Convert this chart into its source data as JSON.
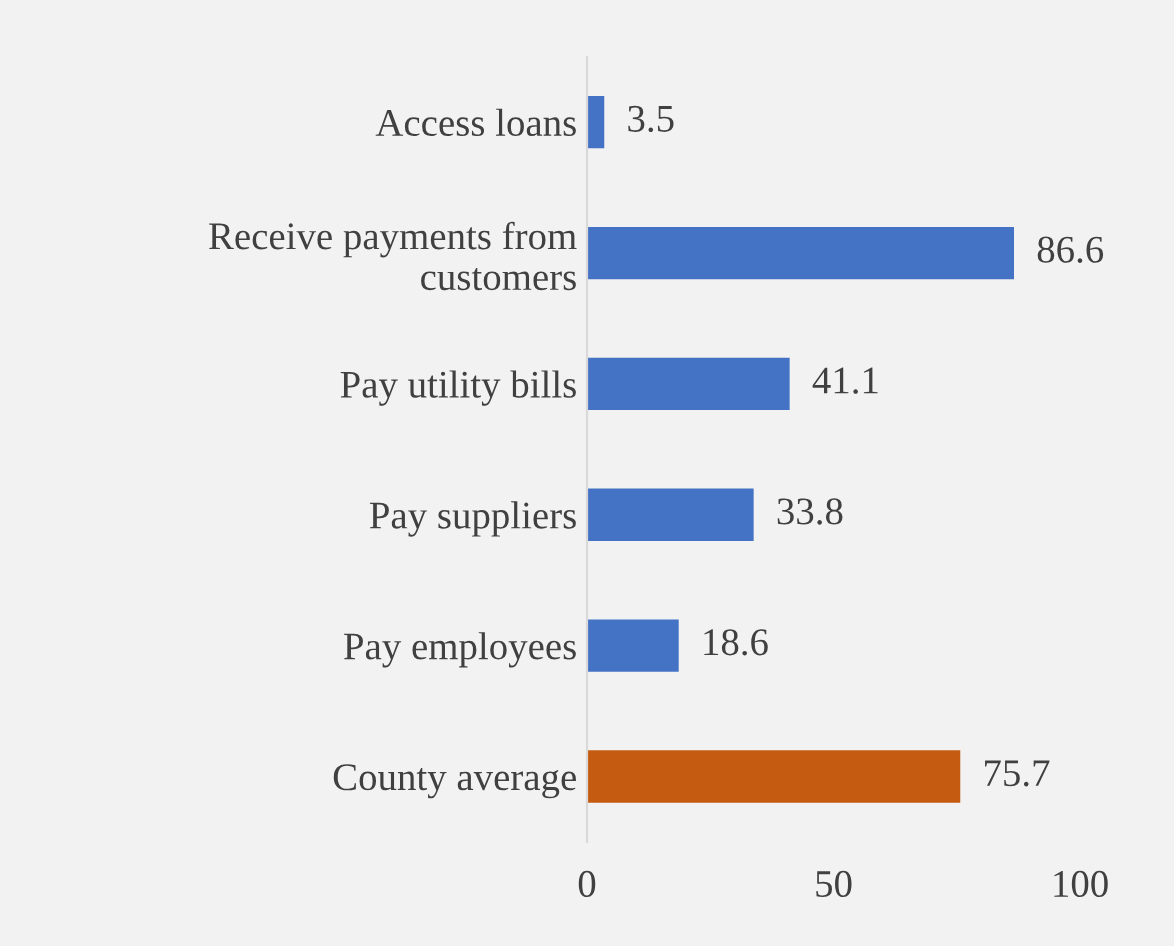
{
  "chart_data": {
    "type": "bar",
    "orientation": "horizontal",
    "categories": [
      "Access loans",
      "Receive payments from customers",
      "Pay utility bills",
      "Pay suppliers",
      "Pay employees",
      "County average"
    ],
    "values": [
      3.5,
      86.6,
      41.1,
      33.8,
      18.6,
      75.7
    ],
    "colors": [
      "#4472c4",
      "#4472c4",
      "#4472c4",
      "#4472c4",
      "#4472c4",
      "#c55a11"
    ],
    "xlim": [
      0,
      100
    ],
    "xticks": [
      0,
      50,
      100
    ],
    "grid": false,
    "data_labels": true,
    "legend": false
  }
}
